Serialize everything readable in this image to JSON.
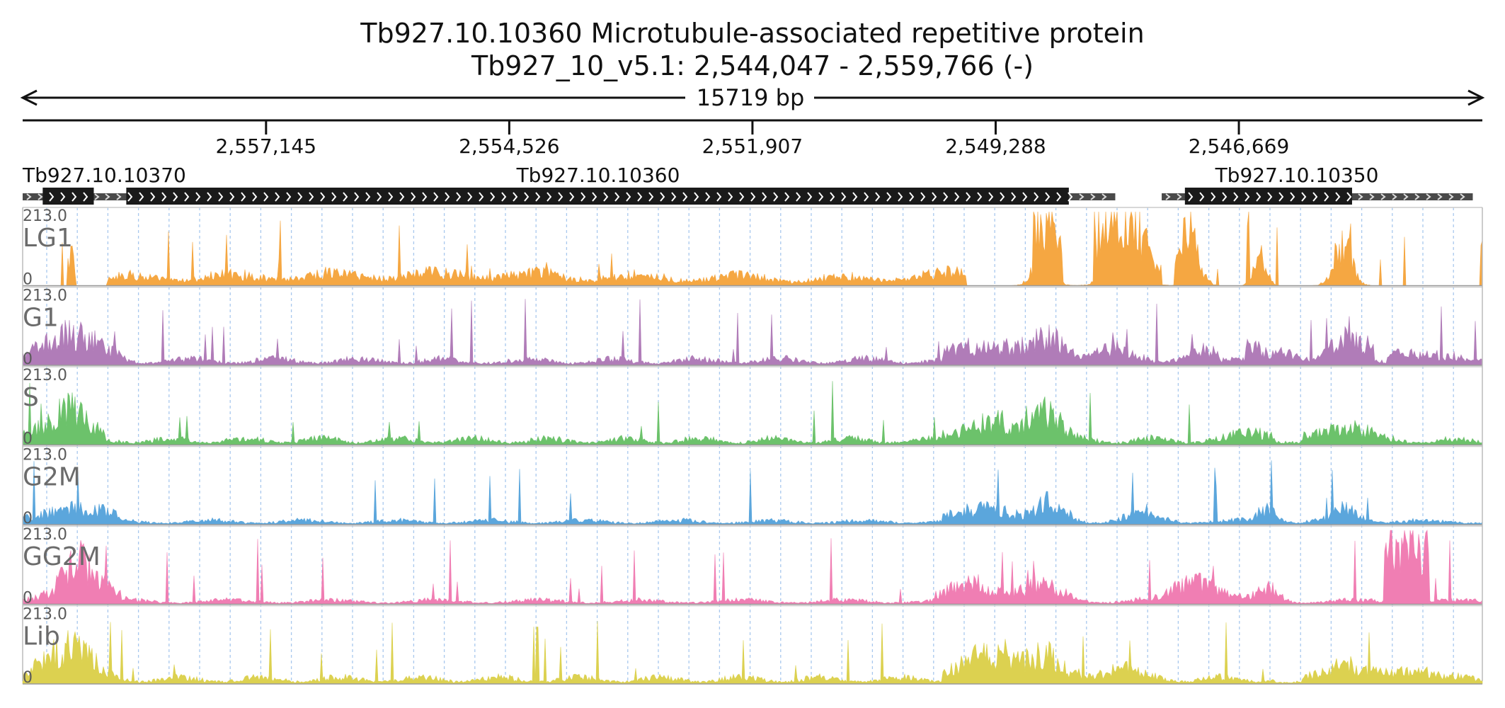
{
  "chart_data": {
    "type": "area",
    "title": "Tb927.10.10360  Microtubule-associated repetitive protein",
    "subtitle": "Tb927_10_v5.1: 2,544,047 - 2,559,766 (-)",
    "span_label": "15719 bp",
    "region": {
      "chrom": "Tb927_10_v5.1",
      "start": 2544047,
      "end": 2559766,
      "strand": "-"
    },
    "x_axis": {
      "reversed": true,
      "ticks": [
        {
          "value": 2557145,
          "label": "2,557,145"
        },
        {
          "value": 2554526,
          "label": "2,554,526"
        },
        {
          "value": 2551907,
          "label": "2,551,907"
        },
        {
          "value": 2549288,
          "label": "2,549,288"
        },
        {
          "value": 2546669,
          "label": "2,546,669"
        }
      ]
    },
    "genes": [
      {
        "name": "Tb927.10.10370",
        "utr": [
          2559766,
          2558450
        ],
        "cds": [
          2559550,
          2559000
        ]
      },
      {
        "name": "Tb927.10.10360",
        "utr": [
          2558920,
          2548000
        ],
        "cds": [
          2558650,
          2548500
        ]
      },
      {
        "name": "Tb927.10.10350",
        "utr": [
          2547500,
          2544150
        ],
        "cds": [
          2547250,
          2545450
        ]
      }
    ],
    "tracks": [
      {
        "name": "LG1",
        "max_label": "213.0",
        "min_label": "0",
        "color": "#f5a742",
        "ylim": [
          0,
          213
        ]
      },
      {
        "name": "G1",
        "max_label": "213.0",
        "min_label": "0",
        "color": "#b07cb8",
        "ylim": [
          0,
          213
        ]
      },
      {
        "name": "S",
        "max_label": "213.0",
        "min_label": "0",
        "color": "#6cc26b",
        "ylim": [
          0,
          213
        ]
      },
      {
        "name": "G2M",
        "max_label": "213.0",
        "min_label": "0",
        "color": "#5ba6dc",
        "ylim": [
          0,
          213
        ]
      },
      {
        "name": "GG2M",
        "max_label": "213.0",
        "min_label": "0",
        "color": "#f07eb3",
        "ylim": [
          0,
          213
        ]
      },
      {
        "name": "Lib",
        "max_label": "213.0",
        "min_label": "0",
        "color": "#dcd150",
        "ylim": [
          0,
          213
        ]
      }
    ]
  }
}
